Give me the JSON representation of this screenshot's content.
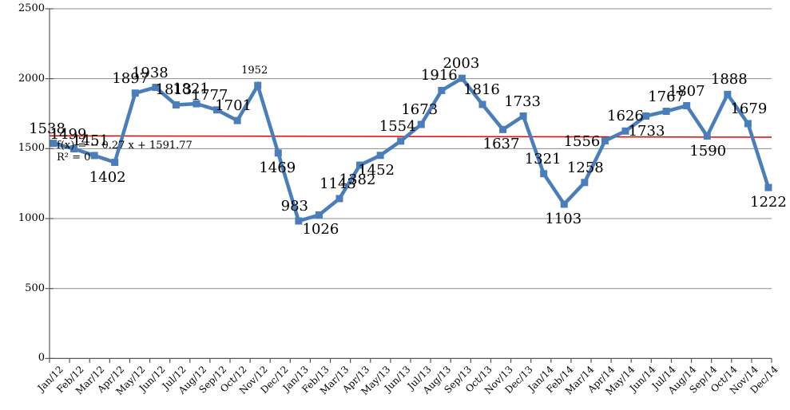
{
  "chart_data": {
    "type": "line",
    "title": "",
    "xlabel": "",
    "ylabel": "",
    "legend": "none",
    "grid": true,
    "marker": "square",
    "ylim": [
      0,
      2500
    ],
    "y_ticks": [
      0,
      500,
      1000,
      1500,
      2000,
      2500
    ],
    "categories": [
      "Jan/12",
      "Feb/12",
      "Mar/12",
      "Apr/12",
      "May/12",
      "Jun/12",
      "Jul/12",
      "Aug/12",
      "Sep/12",
      "Oct/12",
      "Nov/12",
      "Dec/12",
      "Jan/13",
      "Feb/13",
      "Mar/13",
      "Apr/13",
      "May/13",
      "Jun/13",
      "Jul/13",
      "Aug/13",
      "Sep/13",
      "Oct/13",
      "Nov/13",
      "Dec/13",
      "Jan/14",
      "Feb/14",
      "Mar/14",
      "Apr/14",
      "May/14",
      "Jun/14",
      "Jul/14",
      "Aug/14",
      "Sep/14",
      "Oct/14",
      "Nov/14",
      "Dec/14"
    ],
    "values": [
      1538,
      1499,
      1451,
      1402,
      1897,
      1938,
      1813,
      1821,
      1777,
      1701,
      1952,
      1469,
      983,
      1026,
      1143,
      1382,
      1452,
      1554,
      1673,
      1916,
      2003,
      1816,
      1637,
      1733,
      1321,
      1103,
      1258,
      1556,
      1626,
      1733,
      1767,
      1807,
      1590,
      1888,
      1679,
      1222
    ],
    "label_placements": [
      {
        "pos": "above",
        "dx": -8
      },
      {
        "pos": "above",
        "dx": -7
      },
      {
        "pos": "above",
        "dx": -5
      },
      {
        "pos": "below",
        "dx": -9
      },
      {
        "pos": "above",
        "dx": -6
      },
      {
        "pos": "above",
        "dx": -7
      },
      {
        "pos": "above",
        "dx": -3
      },
      {
        "pos": "above",
        "dx": -7
      },
      {
        "pos": "above",
        "dx": -9
      },
      {
        "pos": "above",
        "dx": -5
      },
      {
        "pos": "above",
        "dx": -4,
        "small": true
      },
      {
        "pos": "below",
        "dx": -1
      },
      {
        "pos": "above",
        "dx": -5
      },
      {
        "pos": "below",
        "dx": 2
      },
      {
        "pos": "above",
        "dx": -2
      },
      {
        "pos": "below",
        "dx": -3
      },
      {
        "pos": "below",
        "dx": -5
      },
      {
        "pos": "above",
        "dx": -4
      },
      {
        "pos": "above",
        "dx": -2
      },
      {
        "pos": "above",
        "dx": -3
      },
      {
        "pos": "above",
        "dx": -1
      },
      {
        "pos": "above",
        "dx": -1
      },
      {
        "pos": "below",
        "dx": -2
      },
      {
        "pos": "above",
        "dx": -1
      },
      {
        "pos": "above",
        "dx": -1
      },
      {
        "pos": "below",
        "dx": -1
      },
      {
        "pos": "above",
        "dx": 1
      },
      {
        "pos": "left",
        "dx": 0
      },
      {
        "pos": "above",
        "dx": 0
      },
      {
        "pos": "below",
        "dx": 1
      },
      {
        "pos": "above",
        "dx": 0
      },
      {
        "pos": "above",
        "dx": 0
      },
      {
        "pos": "below",
        "dx": 1
      },
      {
        "pos": "above",
        "dx": 2
      },
      {
        "pos": "above",
        "dx": 1
      },
      {
        "pos": "below",
        "dx": 0
      }
    ],
    "series_color": "#4a7ebb",
    "grid_color": "#8c8c8c",
    "axis_color": "#595959",
    "label_color": "#000000",
    "trendline": {
      "type": "linear",
      "color": "#ee0000",
      "slope": -0.27,
      "intercept": 1591.77,
      "equation_label": "f(x) = − 0.27 x + 1591.77",
      "r2_label": "R² = 0"
    }
  }
}
